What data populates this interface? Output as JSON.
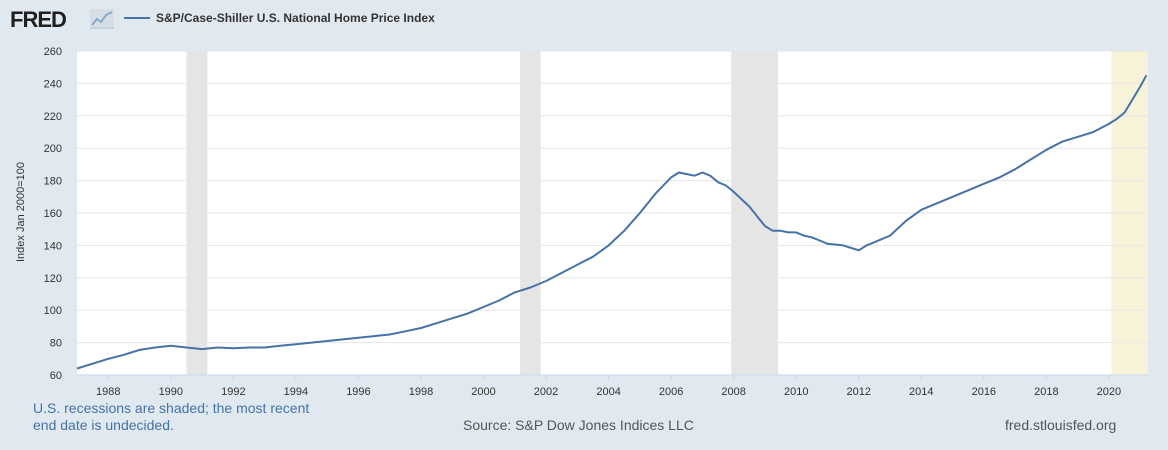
{
  "header": {
    "logo_text": "FRED",
    "logo_icon": "chart-line-icon",
    "series_label": "S&P/Case-Shiller U.S. National Home Price Index",
    "series_color": "#4572a7"
  },
  "footer": {
    "recession_note_line1": "U.S. recessions are shaded; the most recent",
    "recession_note_line2": "end date is undecided.",
    "source": "Source: S&P Dow Jones Indices LLC",
    "site": "fred.stlouisfed.org"
  },
  "chart_data": {
    "type": "line",
    "title": "S&P/Case-Shiller U.S. National Home Price Index",
    "xlabel": "",
    "ylabel": "Index Jan 2000=100",
    "xlim": [
      1987.0,
      2021.25
    ],
    "ylim": [
      60,
      260
    ],
    "yticks": [
      60,
      80,
      100,
      120,
      140,
      160,
      180,
      200,
      220,
      240,
      260
    ],
    "xticks": [
      1988,
      1990,
      1992,
      1994,
      1996,
      1998,
      2000,
      2002,
      2004,
      2006,
      2008,
      2010,
      2012,
      2014,
      2016,
      2018,
      2020
    ],
    "grid": true,
    "recessions": [
      {
        "start": 1990.5,
        "end": 1991.17,
        "undecided": false
      },
      {
        "start": 2001.17,
        "end": 2001.83,
        "undecided": false
      },
      {
        "start": 2007.92,
        "end": 2009.42,
        "undecided": false
      },
      {
        "start": 2020.08,
        "end": 2021.25,
        "undecided": true
      }
    ],
    "recession_color": "#e5e5e5",
    "recent_recession_color": "#f6f3d9",
    "series": [
      {
        "name": "S&P/Case-Shiller U.S. National Home Price Index",
        "color": "#4572a7",
        "x": [
          1987.0,
          1987.5,
          1988.0,
          1988.5,
          1989.0,
          1989.5,
          1990.0,
          1990.5,
          1991.0,
          1991.5,
          1992.0,
          1992.5,
          1993.0,
          1993.5,
          1994.0,
          1994.5,
          1995.0,
          1995.5,
          1996.0,
          1996.5,
          1997.0,
          1997.5,
          1998.0,
          1998.5,
          1999.0,
          1999.5,
          2000.0,
          2000.5,
          2001.0,
          2001.5,
          2002.0,
          2002.5,
          2003.0,
          2003.5,
          2004.0,
          2004.5,
          2005.0,
          2005.5,
          2006.0,
          2006.25,
          2006.5,
          2006.75,
          2007.0,
          2007.25,
          2007.5,
          2007.75,
          2008.0,
          2008.5,
          2009.0,
          2009.25,
          2009.5,
          2009.75,
          2010.0,
          2010.25,
          2010.5,
          2010.75,
          2011.0,
          2011.5,
          2012.0,
          2012.25,
          2012.5,
          2013.0,
          2013.5,
          2014.0,
          2014.5,
          2015.0,
          2015.5,
          2016.0,
          2016.5,
          2017.0,
          2017.5,
          2018.0,
          2018.5,
          2019.0,
          2019.5,
          2020.0,
          2020.25,
          2020.5,
          2020.75,
          2021.0,
          2021.2
        ],
        "values": [
          64,
          67,
          70,
          72.5,
          75.5,
          77,
          78,
          77,
          76,
          77,
          76.5,
          77,
          77,
          78,
          79,
          80,
          81,
          82,
          83,
          84,
          85,
          87,
          89,
          92,
          95,
          98,
          102,
          106,
          111,
          114,
          118,
          123,
          128,
          133,
          140,
          149,
          160,
          172,
          182,
          185,
          184,
          183,
          185,
          183,
          179,
          177,
          173,
          164,
          152,
          149,
          149,
          148,
          148,
          146,
          145,
          143,
          141,
          140,
          137,
          140,
          142,
          146,
          155,
          162,
          166,
          170,
          174,
          178,
          182,
          187,
          193,
          199,
          204,
          207,
          210,
          215,
          218,
          222,
          230,
          238,
          245
        ]
      }
    ]
  }
}
